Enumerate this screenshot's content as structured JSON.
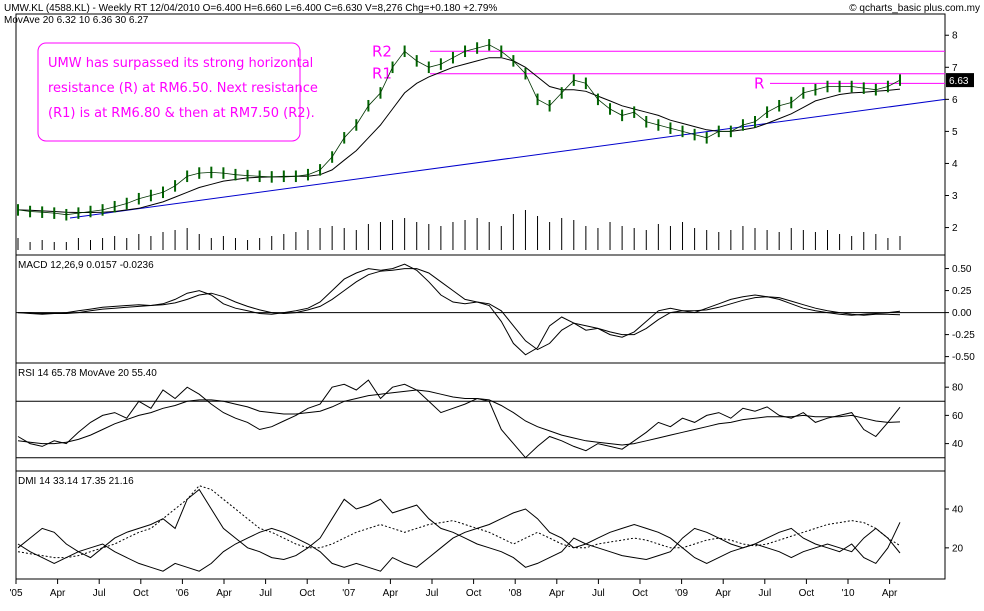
{
  "header": {
    "line1": "UMW.KL (4588.KL) - Weekly RT  12/04/2010   O=6.400   H=6.660   L=6.400   C=6.630   V=8,276   Chg=+0.180   +2.79%",
    "line2": "MovAve 20  6.32   10  6.36   30  6.27",
    "copyright": "© qcharts_basic plus.com.my"
  },
  "annotation": {
    "lines": [
      "UMW has surpassed its strong horizontal",
      "resistance (R) at RM6.50. Next resistance",
      "(R1) is at RM6.80 & then at RM7.50 (R2)."
    ],
    "border_color": "#ff00ff",
    "text_color": "#ff00ff"
  },
  "chart_data": [
    {
      "type": "line",
      "panel": "price",
      "ylim": [
        1.3,
        8.6
      ],
      "yticks": [
        "8",
        "7",
        "6",
        "5",
        "4",
        "3",
        "2"
      ],
      "ytick_values": [
        8,
        7,
        6,
        5,
        4,
        3,
        2
      ],
      "last_price_label": "6.63",
      "resistance_levels": [
        {
          "label": "R2",
          "value": 7.5
        },
        {
          "label": "R1",
          "value": 6.8
        },
        {
          "label": "R",
          "value": 6.5
        }
      ],
      "price_series": [
        2.55,
        2.5,
        2.48,
        2.45,
        2.4,
        2.45,
        2.5,
        2.55,
        2.65,
        2.75,
        2.9,
        3.0,
        3.1,
        3.3,
        3.6,
        3.7,
        3.72,
        3.7,
        3.65,
        3.62,
        3.6,
        3.58,
        3.6,
        3.6,
        3.65,
        3.8,
        4.2,
        4.8,
        5.2,
        5.8,
        6.2,
        7.0,
        7.5,
        7.2,
        7.0,
        7.1,
        7.3,
        7.5,
        7.6,
        7.7,
        7.5,
        7.2,
        6.8,
        6.0,
        5.8,
        6.2,
        6.6,
        6.5,
        6.0,
        5.7,
        5.5,
        5.6,
        5.3,
        5.2,
        5.1,
        5.0,
        4.9,
        4.8,
        5.0,
        5.0,
        5.2,
        5.3,
        5.6,
        5.8,
        5.9,
        6.2,
        6.3,
        6.4,
        6.4,
        6.4,
        6.35,
        6.3,
        6.4,
        6.6
      ],
      "ma_series": [
        {
          "name": "MovAve 20",
          "values": [
            2.55,
            2.54,
            2.52,
            2.5,
            2.48,
            2.47,
            2.47,
            2.48,
            2.5,
            2.55,
            2.6,
            2.7,
            2.8,
            2.95,
            3.1,
            3.25,
            3.35,
            3.45,
            3.5,
            3.55,
            3.57,
            3.58,
            3.58,
            3.6,
            3.6,
            3.65,
            3.8,
            4.1,
            4.4,
            4.8,
            5.2,
            5.7,
            6.2,
            6.5,
            6.7,
            6.85,
            7.0,
            7.1,
            7.2,
            7.3,
            7.3,
            7.2,
            7.0,
            6.7,
            6.4,
            6.3,
            6.3,
            6.25,
            6.1,
            5.95,
            5.8,
            5.7,
            5.6,
            5.5,
            5.35,
            5.25,
            5.15,
            5.05,
            5.0,
            5.0,
            5.05,
            5.12,
            5.25,
            5.4,
            5.55,
            5.75,
            5.95,
            6.05,
            6.15,
            6.2,
            6.22,
            6.25,
            6.28,
            6.32
          ]
        }
      ],
      "trendline": {
        "from": 2.3,
        "to": 6.0
      },
      "volume": [
        0.3,
        0.2,
        0.25,
        0.2,
        0.2,
        0.3,
        0.25,
        0.3,
        0.35,
        0.3,
        0.4,
        0.35,
        0.45,
        0.5,
        0.55,
        0.4,
        0.3,
        0.35,
        0.3,
        0.25,
        0.3,
        0.35,
        0.4,
        0.45,
        0.5,
        0.55,
        0.6,
        0.55,
        0.5,
        0.65,
        0.7,
        0.75,
        0.8,
        0.7,
        0.65,
        0.6,
        0.7,
        0.75,
        0.8,
        0.7,
        0.6,
        0.9,
        1.0,
        0.85,
        0.7,
        0.8,
        0.75,
        0.6,
        0.55,
        0.7,
        0.6,
        0.55,
        0.5,
        0.65,
        0.6,
        0.7,
        0.55,
        0.5,
        0.45,
        0.5,
        0.6,
        0.55,
        0.5,
        0.45,
        0.55,
        0.5,
        0.45,
        0.5,
        0.4,
        0.35,
        0.45,
        0.4,
        0.3,
        0.35
      ]
    },
    {
      "type": "line",
      "panel": "macd",
      "title": "MACD 12,26,9  0.0157  -0.0236",
      "ylim": [
        -0.55,
        0.62
      ],
      "yticks": [
        "0.50",
        "0.25",
        "0.00",
        "-0.25",
        "-0.50"
      ],
      "ytick_values": [
        0.5,
        0.25,
        0.0,
        -0.25,
        -0.5
      ],
      "series": [
        {
          "name": "MACD",
          "values": [
            0,
            -0.01,
            -0.02,
            -0.01,
            0.0,
            0.02,
            0.04,
            0.06,
            0.07,
            0.08,
            0.09,
            0.08,
            0.1,
            0.15,
            0.22,
            0.25,
            0.2,
            0.1,
            0.05,
            0.02,
            -0.01,
            -0.02,
            0.0,
            0.02,
            0.05,
            0.12,
            0.25,
            0.38,
            0.45,
            0.5,
            0.48,
            0.5,
            0.55,
            0.48,
            0.35,
            0.2,
            0.12,
            0.1,
            0.12,
            0.08,
            -0.1,
            -0.35,
            -0.48,
            -0.4,
            -0.15,
            -0.05,
            -0.12,
            -0.2,
            -0.18,
            -0.25,
            -0.28,
            -0.22,
            -0.1,
            0.02,
            0.05,
            0.02,
            0.0,
            0.05,
            0.1,
            0.15,
            0.18,
            0.2,
            0.18,
            0.15,
            0.1,
            0.05,
            0.02,
            0.0,
            -0.02,
            -0.03,
            -0.02,
            -0.01,
            0.0,
            0.0157
          ]
        },
        {
          "name": "Signal",
          "values": [
            0,
            0,
            -0.01,
            -0.01,
            -0.01,
            0.0,
            0.02,
            0.04,
            0.05,
            0.06,
            0.07,
            0.08,
            0.09,
            0.11,
            0.15,
            0.2,
            0.22,
            0.18,
            0.12,
            0.07,
            0.03,
            0.0,
            -0.01,
            0.0,
            0.03,
            0.07,
            0.15,
            0.25,
            0.35,
            0.43,
            0.47,
            0.48,
            0.5,
            0.5,
            0.45,
            0.35,
            0.25,
            0.15,
            0.12,
            0.1,
            0.02,
            -0.15,
            -0.32,
            -0.42,
            -0.35,
            -0.2,
            -0.12,
            -0.15,
            -0.18,
            -0.22,
            -0.25,
            -0.25,
            -0.18,
            -0.08,
            0.0,
            0.02,
            0.02,
            0.03,
            0.06,
            0.1,
            0.14,
            0.17,
            0.18,
            0.17,
            0.13,
            0.09,
            0.05,
            0.02,
            0.0,
            -0.02,
            -0.03,
            -0.02,
            -0.02,
            -0.0236
          ]
        }
      ]
    },
    {
      "type": "line",
      "panel": "rsi",
      "title": "RSI 14  65.78   MovAve 20  55.40",
      "ylim": [
        22,
        95
      ],
      "yticks": [
        "80",
        "60",
        "40"
      ],
      "ytick_values": [
        80,
        60,
        40
      ],
      "ref_lines": [
        70,
        30
      ],
      "series": [
        {
          "name": "RSI 14",
          "values": [
            45,
            40,
            38,
            42,
            40,
            48,
            55,
            60,
            62,
            58,
            70,
            65,
            78,
            72,
            80,
            75,
            68,
            62,
            58,
            55,
            50,
            52,
            56,
            60,
            65,
            68,
            80,
            82,
            78,
            85,
            72,
            80,
            82,
            78,
            70,
            62,
            65,
            68,
            72,
            70,
            50,
            40,
            30,
            38,
            45,
            42,
            38,
            35,
            40,
            38,
            36,
            42,
            48,
            55,
            52,
            58,
            55,
            60,
            62,
            58,
            65,
            63,
            66,
            60,
            58,
            62,
            55,
            58,
            60,
            62,
            50,
            45,
            55,
            65.78
          ]
        },
        {
          "name": "MovAve 20",
          "values": [
            42,
            41,
            40,
            40,
            41,
            43,
            46,
            50,
            54,
            57,
            60,
            62,
            65,
            67,
            70,
            71,
            71,
            70,
            68,
            66,
            63,
            62,
            61,
            61,
            62,
            63,
            66,
            70,
            72,
            74,
            75,
            76,
            77,
            78,
            77,
            75,
            73,
            72,
            72,
            71,
            67,
            62,
            56,
            52,
            49,
            46,
            44,
            42,
            41,
            40,
            39,
            40,
            42,
            44,
            46,
            48,
            50,
            52,
            54,
            55,
            57,
            58,
            59,
            59,
            59,
            60,
            59,
            59,
            59,
            60,
            58,
            56,
            55,
            55.4
          ]
        }
      ]
    },
    {
      "type": "line",
      "panel": "dmi",
      "title": "DMI 14  33.14   17.35   21.16",
      "ylim": [
        5,
        58
      ],
      "yticks": [
        "40",
        "20"
      ],
      "ytick_values": [
        40,
        20
      ],
      "series": [
        {
          "name": "33.14",
          "values": [
            20,
            25,
            30,
            28,
            22,
            18,
            15,
            20,
            25,
            28,
            30,
            32,
            35,
            30,
            45,
            50,
            40,
            30,
            25,
            20,
            18,
            15,
            14,
            16,
            20,
            25,
            35,
            45,
            40,
            42,
            45,
            38,
            40,
            42,
            35,
            30,
            28,
            25,
            22,
            20,
            18,
            15,
            10,
            12,
            15,
            18,
            25,
            22,
            20,
            18,
            16,
            15,
            14,
            16,
            18,
            25,
            30,
            28,
            25,
            22,
            20,
            22,
            25,
            28,
            30,
            25,
            22,
            20,
            18,
            22,
            15,
            12,
            20,
            33.14
          ]
        },
        {
          "name": "17.35",
          "values": [
            22,
            18,
            15,
            12,
            15,
            18,
            20,
            22,
            18,
            15,
            12,
            10,
            8,
            12,
            10,
            8,
            12,
            18,
            22,
            25,
            28,
            30,
            28,
            25,
            22,
            18,
            12,
            10,
            12,
            10,
            8,
            15,
            12,
            10,
            15,
            20,
            25,
            28,
            30,
            32,
            35,
            38,
            40,
            35,
            28,
            25,
            20,
            22,
            25,
            28,
            30,
            32,
            30,
            28,
            25,
            20,
            15,
            12,
            15,
            18,
            20,
            22,
            20,
            18,
            15,
            18,
            20,
            22,
            20,
            18,
            25,
            30,
            25,
            17.35
          ]
        },
        {
          "name": "21.16",
          "values": [
            18,
            17,
            16,
            15,
            15,
            16,
            18,
            20,
            22,
            25,
            28,
            30,
            35,
            40,
            45,
            52,
            50,
            45,
            40,
            35,
            30,
            28,
            25,
            22,
            20,
            20,
            22,
            25,
            28,
            30,
            32,
            30,
            28,
            30,
            32,
            33,
            34,
            32,
            30,
            28,
            25,
            22,
            25,
            28,
            25,
            22,
            20,
            20,
            22,
            23,
            24,
            25,
            24,
            22,
            20,
            20,
            22,
            24,
            25,
            24,
            22,
            21,
            22,
            24,
            26,
            28,
            30,
            32,
            33,
            34,
            33,
            30,
            25,
            21.16
          ]
        }
      ]
    }
  ],
  "x_axis": {
    "labels": [
      "'05",
      "Apr",
      "Jul",
      "Oct",
      "'06",
      "Apr",
      "Jul",
      "Oct",
      "'07",
      "Apr",
      "Jul",
      "Oct",
      "'08",
      "Apr",
      "Jul",
      "Oct",
      "'09",
      "Apr",
      "Jul",
      "Oct",
      "'10",
      "Apr"
    ]
  },
  "colors": {
    "resistance": "#ff00ff",
    "trendline": "#0000cc",
    "price_bars": "#006400",
    "lines": "#000000",
    "ref_lines": "#000000"
  }
}
